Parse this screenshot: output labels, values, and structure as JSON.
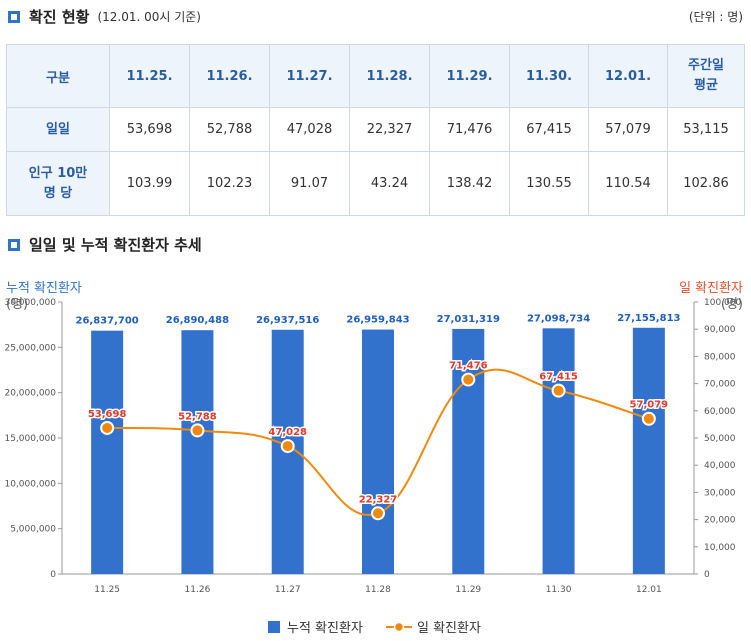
{
  "section1": {
    "title": "확진 현황",
    "subtitle": "(12.01. 00시 기준)",
    "unit": "(단위 : 명)"
  },
  "table": {
    "headers": [
      "구분",
      "11.25.",
      "11.26.",
      "11.27.",
      "11.28.",
      "11.29.",
      "11.30.",
      "12.01.",
      "주간일 평균"
    ],
    "rows": [
      {
        "label": "일일",
        "values": [
          "53,698",
          "52,788",
          "47,028",
          "22,327",
          "71,476",
          "67,415",
          "57,079",
          "53,115"
        ]
      },
      {
        "label": "인구 10만 명 당",
        "values": [
          "103.99",
          "102.23",
          "91.07",
          "43.24",
          "138.42",
          "130.55",
          "110.54",
          "102.86"
        ]
      }
    ]
  },
  "section2": {
    "title": "일일 및 누적 확진환자 추세"
  },
  "colors": {
    "bar": "#3272cd",
    "line": "#f08a0f",
    "bar_label": "#1f5fbf",
    "line_label": "#e23a2a",
    "accent": "#2f74c8"
  },
  "chart_data": {
    "type": "bar",
    "categories": [
      "11.25",
      "11.26",
      "11.27",
      "11.28",
      "11.29",
      "11.30",
      "12.01"
    ],
    "series": [
      {
        "name": "누적 확진환자",
        "type": "bar",
        "axis": "left",
        "values": [
          26837700,
          26890488,
          26937516,
          26959843,
          27031319,
          27098734,
          27155813
        ],
        "labels": [
          "26,837,700",
          "26,890,488",
          "26,937,516",
          "26,959,843",
          "27,031,319",
          "27,098,734",
          "27,155,813"
        ]
      },
      {
        "name": "일 확진환자",
        "type": "line",
        "axis": "right",
        "values": [
          53698,
          52788,
          47028,
          22327,
          71476,
          67415,
          57079
        ],
        "labels": [
          "53,698",
          "52,788",
          "47,028",
          "22,327",
          "71,476",
          "67,415",
          "57,079"
        ]
      }
    ],
    "y_left": {
      "label_line1": "누적 확진환자",
      "label_line2": "(명)",
      "ylim": [
        0,
        30000000
      ],
      "ticks": [
        0,
        5000000,
        10000000,
        15000000,
        20000000,
        25000000,
        30000000
      ],
      "tick_labels": [
        "0",
        "5,000,000",
        "10,000,000",
        "15,000,000",
        "20,000,000",
        "25,000,000",
        "30,000,000"
      ]
    },
    "y_right": {
      "label_line1": "일 확진환자",
      "label_line2": "(명)",
      "ylim": [
        0,
        100000
      ],
      "ticks": [
        0,
        10000,
        20000,
        30000,
        40000,
        50000,
        60000,
        70000,
        80000,
        90000,
        100000
      ],
      "tick_labels": [
        "0",
        "10,000",
        "20,000",
        "30,000",
        "40,000",
        "50,000",
        "60,000",
        "70,000",
        "80,000",
        "90,000",
        "100,000"
      ]
    },
    "legend_position": "bottom",
    "grid": false
  }
}
